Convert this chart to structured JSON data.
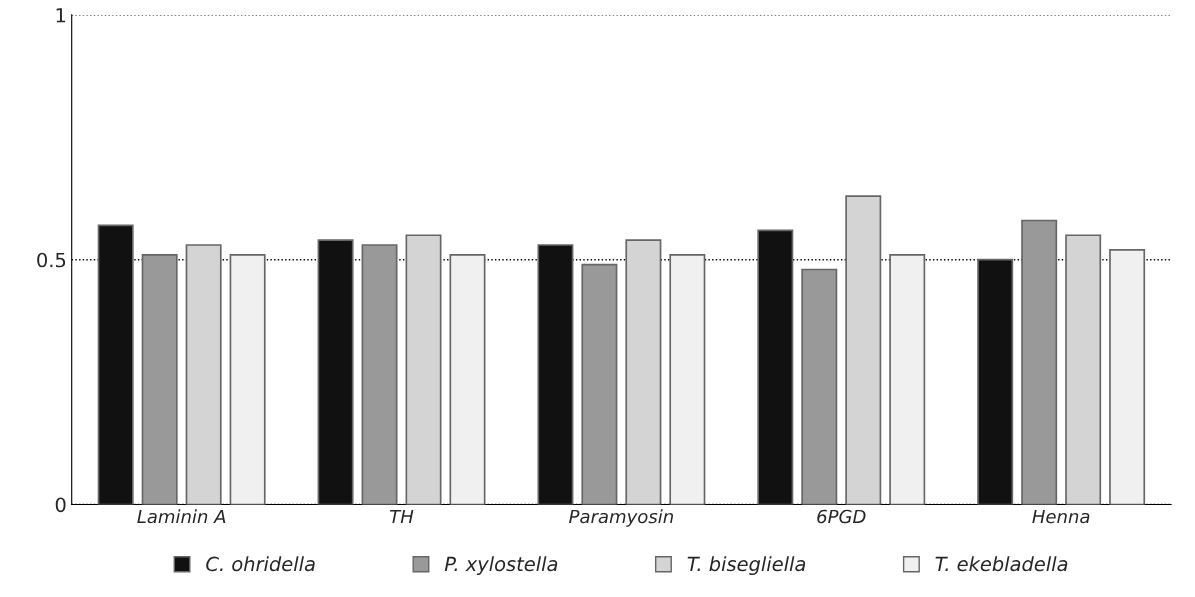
{
  "chart_data": {
    "type": "bar",
    "categories": [
      "Laminin A",
      "TH",
      "Paramyosin",
      "6PGD",
      "Henna"
    ],
    "series": [
      {
        "name": "C. ohridella",
        "color": "#111111",
        "values": [
          0.57,
          0.54,
          0.53,
          0.56,
          0.5
        ]
      },
      {
        "name": "P. xylostella",
        "color": "#999999",
        "values": [
          0.51,
          0.53,
          0.49,
          0.48,
          0.58
        ]
      },
      {
        "name": "T. bisegliella",
        "color": "#d4d4d4",
        "values": [
          0.53,
          0.55,
          0.54,
          0.63,
          0.55
        ]
      },
      {
        "name": "T. ekebladella",
        "color": "#f0f0f0",
        "values": [
          0.51,
          0.51,
          0.51,
          0.51,
          0.52
        ]
      }
    ],
    "ylim": [
      0,
      1
    ],
    "yticks": [
      0,
      0.5,
      1
    ],
    "grid": "y",
    "legend": "bottom"
  }
}
